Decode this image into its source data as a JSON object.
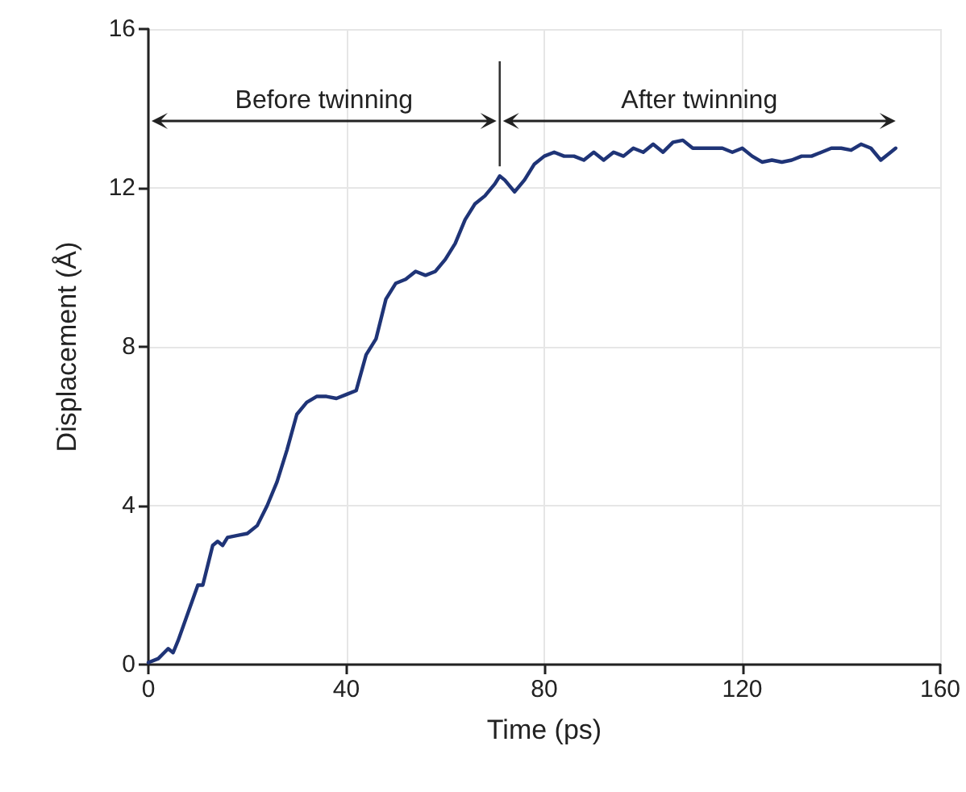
{
  "chart_data": {
    "type": "line",
    "xlabel": "Time (ps)",
    "ylabel": "Displacement (Å)",
    "x": [
      0,
      2,
      4,
      5,
      6,
      8,
      10,
      11,
      12,
      13,
      14,
      15,
      16,
      18,
      20,
      22,
      24,
      26,
      28,
      30,
      32,
      34,
      36,
      38,
      40,
      42,
      44,
      46,
      48,
      50,
      52,
      54,
      56,
      58,
      60,
      62,
      64,
      66,
      68,
      70,
      71,
      72,
      74,
      76,
      78,
      80,
      82,
      84,
      86,
      88,
      90,
      92,
      94,
      96,
      98,
      100,
      102,
      104,
      106,
      108,
      110,
      112,
      114,
      116,
      118,
      120,
      122,
      124,
      126,
      128,
      130,
      132,
      134,
      136,
      138,
      140,
      142,
      144,
      146,
      148,
      150,
      151
    ],
    "series": [
      {
        "color": "#1f3477",
        "values": [
          0.05,
          0.15,
          0.4,
          0.3,
          0.6,
          1.3,
          2,
          2,
          2.5,
          3,
          3.1,
          3.0,
          3.2,
          3.25,
          3.3,
          3.5,
          4,
          4.6,
          5.4,
          6.3,
          6.6,
          6.75,
          6.75,
          6.7,
          6.8,
          6.9,
          7.8,
          8.2,
          9.2,
          9.6,
          9.7,
          9.9,
          9.8,
          9.9,
          10.2,
          10.6,
          11.2,
          11.6,
          11.8,
          12.1,
          12.3,
          12.2,
          11.9,
          12.2,
          12.6,
          12.8,
          12.9,
          12.8,
          12.8,
          12.7,
          12.9,
          12.7,
          12.9,
          12.8,
          13.0,
          12.9,
          13.1,
          12.9,
          13.15,
          13.2,
          13.0,
          13.0,
          13.0,
          13.0,
          12.9,
          13.0,
          12.8,
          12.65,
          12.7,
          12.65,
          12.7,
          12.8,
          12.8,
          12.9,
          13.0,
          13.0,
          12.95,
          13.1,
          13.0,
          12.7,
          12.9,
          13.0
        ]
      }
    ],
    "xlim": [
      0,
      160
    ],
    "xticks": [
      0,
      40,
      80,
      120,
      160
    ],
    "ylim": [
      0,
      16
    ],
    "yticks": [
      0,
      4,
      8,
      12,
      16
    ],
    "grid": true,
    "marker": "none",
    "line_style": "solid",
    "ref_lines": [
      {
        "axis": "x",
        "value": 71,
        "color": "#333333",
        "line_style": "solid"
      }
    ],
    "annotations": [
      "Before twinning",
      "After twinning"
    ]
  }
}
